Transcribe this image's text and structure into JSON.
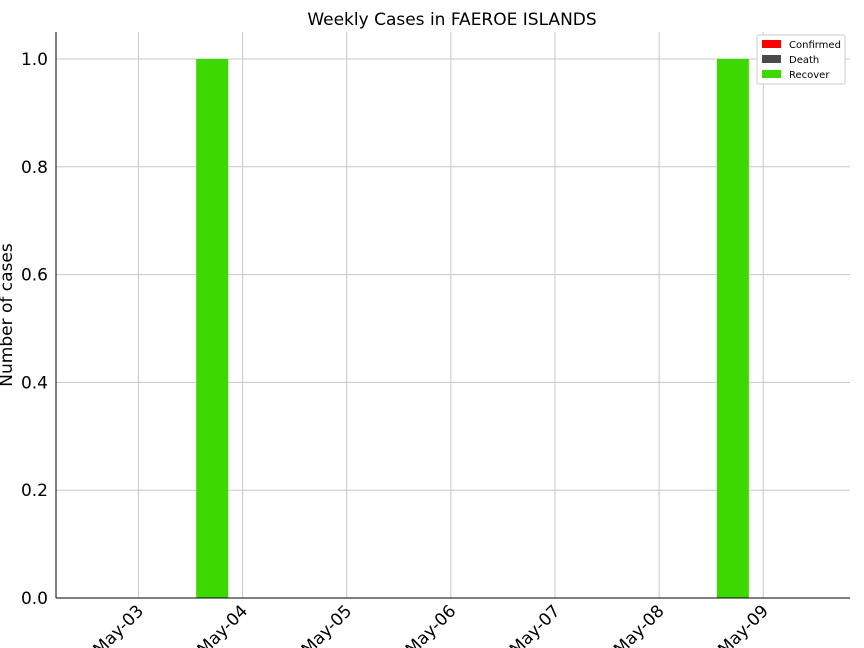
{
  "chart_data": {
    "type": "bar",
    "title": "Weekly Cases in FAEROE ISLANDS",
    "xlabel": "",
    "ylabel": "Number of cases",
    "ylim": [
      0,
      1.05
    ],
    "yticks": [
      "0.0",
      "0.2",
      "0.4",
      "0.6",
      "0.8",
      "1.0"
    ],
    "ytick_values": [
      0.0,
      0.2,
      0.4,
      0.6,
      0.8,
      1.0
    ],
    "xticks": [
      "May-03",
      "May-04",
      "May-05",
      "May-06",
      "May-07",
      "May-08",
      "May-09"
    ],
    "xlim": [
      "2020-05-02 05:00",
      "2020-05-09 20:00"
    ],
    "x": [
      "2020-05-03 17:00",
      "2020-05-08 17:00"
    ],
    "series": [
      {
        "name": "Confirmed",
        "color": "#ff0000",
        "values": [
          0,
          0
        ]
      },
      {
        "name": "Death",
        "color": "#4a4a4a",
        "values": [
          0,
          0
        ]
      },
      {
        "name": "Recover",
        "color": "#3dd800",
        "values": [
          1,
          1
        ]
      }
    ],
    "grid": true,
    "legend_position": "top-right"
  }
}
